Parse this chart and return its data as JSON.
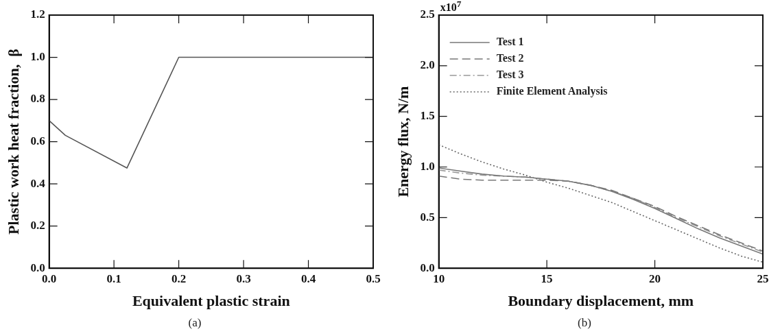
{
  "chart_data": [
    {
      "type": "line",
      "xlabel": "Equivalent plastic strain",
      "ylabel": "Plastic work heat fraction,  β",
      "annotations": [
        "(a)"
      ],
      "x": [
        0,
        0.025,
        0.12,
        0.2,
        0.5
      ],
      "xlim": [
        0,
        0.5
      ],
      "xticks": [
        {
          "value": 0,
          "label": "0.0"
        },
        0.1,
        0.2,
        0.3,
        0.4,
        0.5
      ],
      "ylim": [
        0,
        1.2
      ],
      "yticks": [
        {
          "value": 0,
          "label": "0.0"
        },
        0.2,
        0.4,
        0.6,
        0.8,
        {
          "value": 1,
          "label": "1.0"
        },
        1.2
      ],
      "series": [
        {
          "color": "#555555",
          "line_style": "solid",
          "values": [
            0.7,
            0.63,
            0.475,
            1.0,
            1.0
          ]
        }
      ],
      "legend": false,
      "marker": "none"
    },
    {
      "type": "line",
      "xlabel": "Boundary displacement, mm",
      "ylabel": "Energy flux, N/m",
      "annotations": [
        "x10$^{7}$",
        "(b)"
      ],
      "x": [
        10,
        11,
        12,
        13,
        14,
        15,
        16,
        17,
        18,
        19,
        20,
        21,
        22,
        23,
        24,
        25
      ],
      "xlim": [
        10,
        25
      ],
      "xticks": [
        10,
        15,
        20,
        25
      ],
      "ylim": [
        0,
        2.5
      ],
      "yticks": [
        {
          "value": 0,
          "label": "0.0"
        },
        0.5,
        {
          "value": 1,
          "label": "1.0"
        },
        1.5,
        {
          "value": 2,
          "label": "2.0"
        },
        2.5
      ],
      "series": [
        {
          "name": "Test 1",
          "color": "#777777",
          "line_style": "solid",
          "values": [
            0.99,
            0.96,
            0.93,
            0.91,
            0.9,
            0.88,
            0.86,
            0.82,
            0.76,
            0.68,
            0.59,
            0.49,
            0.39,
            0.3,
            0.22,
            0.14
          ]
        },
        {
          "name": "Test 2",
          "color": "#777777",
          "line_style": "dashed",
          "values": [
            0.91,
            0.88,
            0.87,
            0.87,
            0.87,
            0.87,
            0.86,
            0.82,
            0.77,
            0.69,
            0.61,
            0.51,
            0.42,
            0.33,
            0.25,
            0.17
          ]
        },
        {
          "name": "Test 3",
          "color": "#999999",
          "line_style": "dashdot",
          "values": [
            0.97,
            0.94,
            0.92,
            0.91,
            0.9,
            0.88,
            0.86,
            0.82,
            0.76,
            0.69,
            0.6,
            0.5,
            0.41,
            0.32,
            0.24,
            0.16
          ]
        },
        {
          "name": "Finite Element Analysis",
          "color": "#666666",
          "line_style": "dotted",
          "values": [
            1.22,
            1.13,
            1.05,
            0.98,
            0.92,
            0.85,
            0.79,
            0.72,
            0.65,
            0.56,
            0.47,
            0.38,
            0.29,
            0.2,
            0.12,
            0.06
          ]
        }
      ],
      "legend": "top left",
      "marker": "none"
    }
  ]
}
